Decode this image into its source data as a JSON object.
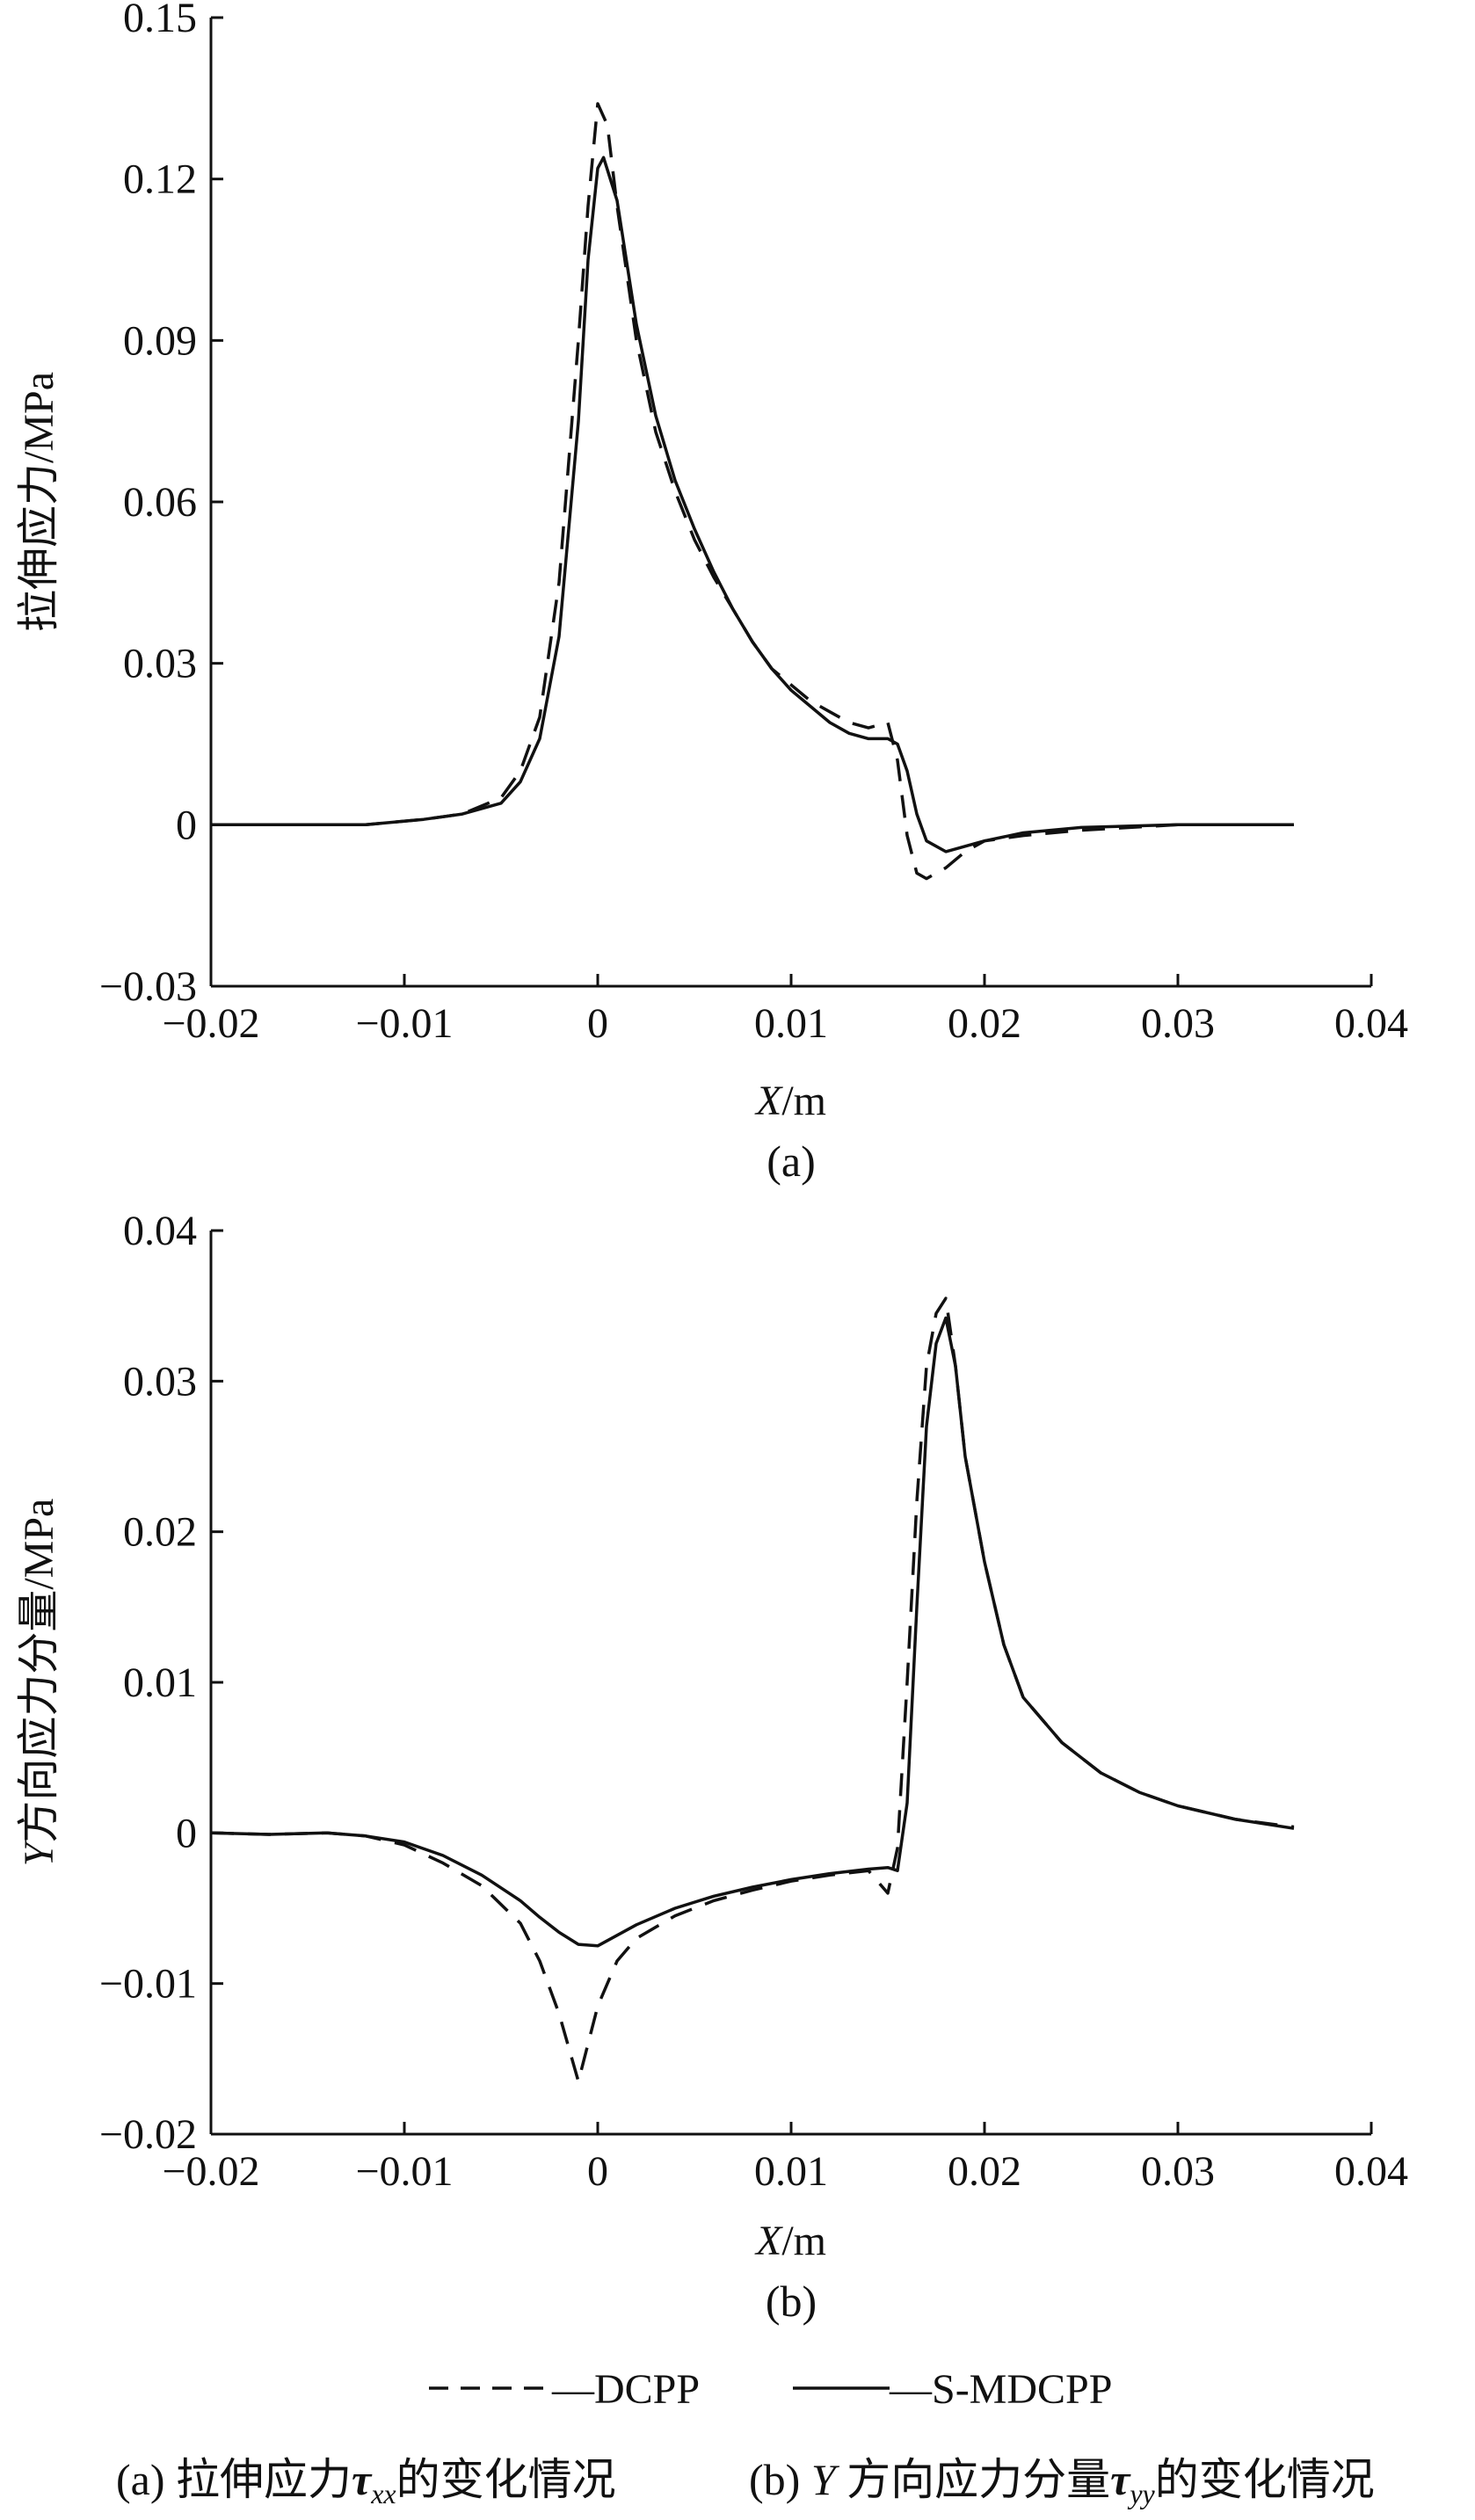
{
  "chart_data": [
    {
      "type": "line",
      "panel_label": "(a)",
      "xlabel_italic": "X",
      "xlabel_unit": "/m",
      "ylabel": "拉伸应力/MPa",
      "xlim": [
        -0.02,
        0.04
      ],
      "ylim": [
        -0.03,
        0.15
      ],
      "xticks": [
        -0.02,
        -0.01,
        0,
        0.01,
        0.02,
        0.03,
        0.04
      ],
      "xtick_labels": [
        "−0.02",
        "−0.01",
        "0",
        "0.01",
        "0.02",
        "0.03",
        "0.04"
      ],
      "yticks": [
        -0.03,
        0,
        0.03,
        0.06,
        0.09,
        0.12,
        0.15
      ],
      "ytick_labels": [
        "−0.03",
        "0",
        "0.03",
        "0.06",
        "0.09",
        "0.12",
        "0.15"
      ],
      "series": [
        {
          "name": "DCPP",
          "style": "dashed",
          "x": [
            -0.02,
            -0.012,
            -0.009,
            -0.007,
            -0.005,
            -0.004,
            -0.003,
            -0.002,
            -0.001,
            -0.0005,
            0,
            0.0005,
            0.001,
            0.002,
            0.003,
            0.004,
            0.005,
            0.006,
            0.007,
            0.008,
            0.009,
            0.01,
            0.011,
            0.012,
            0.013,
            0.014,
            0.015,
            0.0155,
            0.016,
            0.0165,
            0.017,
            0.018,
            0.019,
            0.02,
            0.022,
            0.025,
            0.03,
            0.036
          ],
          "y": [
            0,
            0,
            0.001,
            0.002,
            0.005,
            0.01,
            0.02,
            0.045,
            0.09,
            0.115,
            0.134,
            0.13,
            0.115,
            0.09,
            0.073,
            0.062,
            0.053,
            0.046,
            0.04,
            0.034,
            0.029,
            0.026,
            0.023,
            0.021,
            0.019,
            0.018,
            0.019,
            0.012,
            -0.002,
            -0.009,
            -0.01,
            -0.008,
            -0.005,
            -0.003,
            -0.002,
            -0.001,
            0,
            0
          ]
        },
        {
          "name": "S-MDCPP",
          "style": "solid",
          "x": [
            -0.02,
            -0.012,
            -0.009,
            -0.007,
            -0.005,
            -0.004,
            -0.003,
            -0.002,
            -0.001,
            -0.0005,
            0,
            0.0003,
            0.001,
            0.002,
            0.003,
            0.004,
            0.005,
            0.006,
            0.007,
            0.008,
            0.009,
            0.01,
            0.011,
            0.012,
            0.013,
            0.014,
            0.015,
            0.0155,
            0.016,
            0.0165,
            0.017,
            0.018,
            0.019,
            0.02,
            0.022,
            0.025,
            0.03,
            0.036
          ],
          "y": [
            0,
            0,
            0.001,
            0.002,
            0.004,
            0.008,
            0.016,
            0.035,
            0.075,
            0.105,
            0.122,
            0.124,
            0.116,
            0.093,
            0.076,
            0.064,
            0.055,
            0.047,
            0.04,
            0.034,
            0.029,
            0.025,
            0.022,
            0.019,
            0.017,
            0.016,
            0.016,
            0.015,
            0.01,
            0.002,
            -0.003,
            -0.005,
            -0.004,
            -0.003,
            -0.0015,
            -0.0005,
            0,
            0
          ]
        }
      ]
    },
    {
      "type": "line",
      "panel_label": "(b)",
      "xlabel_italic": "X",
      "xlabel_unit": "/m",
      "ylabel_italic": "Y",
      "ylabel": "方向应力分量/MPa",
      "xlim": [
        -0.02,
        0.04
      ],
      "ylim": [
        -0.02,
        0.04
      ],
      "xticks": [
        -0.02,
        -0.01,
        0,
        0.01,
        0.02,
        0.03,
        0.04
      ],
      "xtick_labels": [
        "−0.02",
        "−0.01",
        "0",
        "0.01",
        "0.02",
        "0.03",
        "0.04"
      ],
      "yticks": [
        -0.02,
        -0.01,
        0,
        0.01,
        0.02,
        0.03,
        0.04
      ],
      "ytick_labels": [
        "−0.02",
        "−0.01",
        "0",
        "0.01",
        "0.02",
        "0.03",
        "0.04"
      ],
      "series": [
        {
          "name": "DCPP",
          "style": "dashed",
          "x": [
            -0.02,
            -0.017,
            -0.014,
            -0.012,
            -0.01,
            -0.008,
            -0.006,
            -0.004,
            -0.003,
            -0.002,
            -0.001,
            0,
            0.001,
            0.002,
            0.004,
            0.006,
            0.008,
            0.01,
            0.012,
            0.014,
            0.015,
            0.0155,
            0.016,
            0.0165,
            0.017,
            0.0175,
            0.018,
            0.0185,
            0.019,
            0.02,
            0.021,
            0.022,
            0.024,
            0.026,
            0.028,
            0.03,
            0.033,
            0.036
          ],
          "y": [
            0,
            -0.0001,
            0,
            -0.0002,
            -0.0008,
            -0.002,
            -0.0035,
            -0.006,
            -0.0085,
            -0.012,
            -0.0165,
            -0.0115,
            -0.0085,
            -0.007,
            -0.0055,
            -0.0045,
            -0.0038,
            -0.0032,
            -0.0028,
            -0.0025,
            -0.004,
            -0.001,
            0.01,
            0.022,
            0.031,
            0.0345,
            0.0355,
            0.031,
            0.025,
            0.018,
            0.0125,
            0.009,
            0.006,
            0.004,
            0.0027,
            0.0018,
            0.0009,
            0.0004
          ]
        },
        {
          "name": "S-MDCPP",
          "style": "solid",
          "x": [
            -0.02,
            -0.017,
            -0.014,
            -0.012,
            -0.01,
            -0.008,
            -0.006,
            -0.004,
            -0.003,
            -0.002,
            -0.001,
            0,
            0.001,
            0.002,
            0.004,
            0.006,
            0.008,
            0.01,
            0.012,
            0.014,
            0.015,
            0.0155,
            0.016,
            0.0165,
            0.017,
            0.0175,
            0.018,
            0.0185,
            0.019,
            0.02,
            0.021,
            0.022,
            0.024,
            0.026,
            0.028,
            0.03,
            0.033,
            0.036
          ],
          "y": [
            0,
            -0.0001,
            0,
            -0.0002,
            -0.0006,
            -0.0015,
            -0.0028,
            -0.0045,
            -0.0056,
            -0.0066,
            -0.0074,
            -0.0075,
            -0.0068,
            -0.0061,
            -0.005,
            -0.0042,
            -0.0036,
            -0.0031,
            -0.0027,
            -0.0024,
            -0.0023,
            -0.0025,
            0.002,
            0.015,
            0.027,
            0.0325,
            0.0342,
            0.031,
            0.025,
            0.018,
            0.0125,
            0.009,
            0.006,
            0.004,
            0.0027,
            0.0018,
            0.0009,
            0.0003
          ]
        }
      ]
    }
  ],
  "legend": {
    "placement": "bottom",
    "items": [
      {
        "name": "DCPP",
        "style": "dashed"
      },
      {
        "name": "S-MDCPP",
        "style": "solid"
      }
    ]
  },
  "caption": {
    "a_prefix": "(a) 拉伸应力",
    "a_tau": "τ",
    "a_sub": "xx",
    "a_suffix": "的变化情况",
    "b_prefix": "(b) ",
    "b_italic": "Y",
    "b_middle": " 方向应力分量",
    "b_tau": "τ",
    "b_sub": "yy",
    "b_suffix": "的变化情况"
  }
}
